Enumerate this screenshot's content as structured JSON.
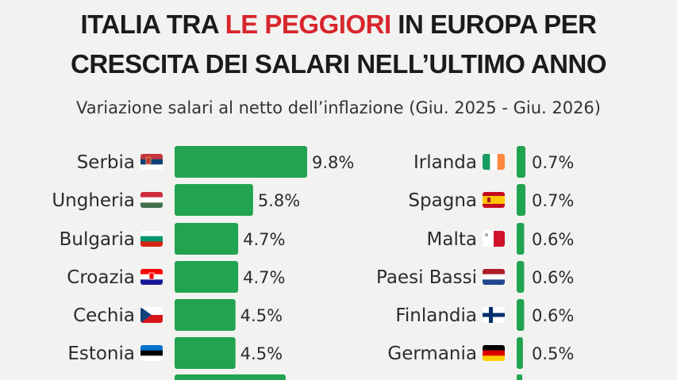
{
  "header": {
    "title_part1": "ITALIA TRA ",
    "title_accent": "LE PEGGIORI",
    "title_part2": " IN EUROPA PER",
    "title_line2": "CRESCITA DEI SALARI NELL’ULTIMO ANNO",
    "subtitle": "Variazione salari al netto dell’inflazione (Giu. 2025 - Giu. 2026)"
  },
  "colors": {
    "bar": "#21a350",
    "accent": "#d7262c",
    "background": "#f2f2f0"
  },
  "chart_data": [
    {
      "type": "bar",
      "orientation": "horizontal",
      "categories": [
        "Serbia",
        "Ungheria",
        "Bulgaria",
        "Croazia",
        "Cechia",
        "Estonia"
      ],
      "values": [
        9.8,
        5.8,
        4.7,
        4.7,
        4.5,
        4.5
      ],
      "value_labels": [
        "9.8%",
        "5.8%",
        "4.7%",
        "4.7%",
        "4.5%",
        "4.5%"
      ],
      "flags": [
        "serbia-flag-icon",
        "hungary-flag-icon",
        "bulgaria-flag-icon",
        "croatia-flag-icon",
        "czechia-flag-icon",
        "estonia-flag-icon"
      ],
      "unit": "%"
    },
    {
      "type": "bar",
      "orientation": "horizontal",
      "categories": [
        "Irlanda",
        "Spagna",
        "Malta",
        "Paesi Bassi",
        "Finlandia",
        "Germania"
      ],
      "values": [
        0.7,
        0.7,
        0.6,
        0.6,
        0.6,
        0.5
      ],
      "value_labels": [
        "0.7%",
        "0.7%",
        "0.6%",
        "0.6%",
        "0.6%",
        "0.5%"
      ],
      "flags": [
        "ireland-flag-icon",
        "spain-flag-icon",
        "malta-flag-icon",
        "netherlands-flag-icon",
        "finland-flag-icon",
        "germany-flag-icon"
      ],
      "unit": "%"
    }
  ]
}
